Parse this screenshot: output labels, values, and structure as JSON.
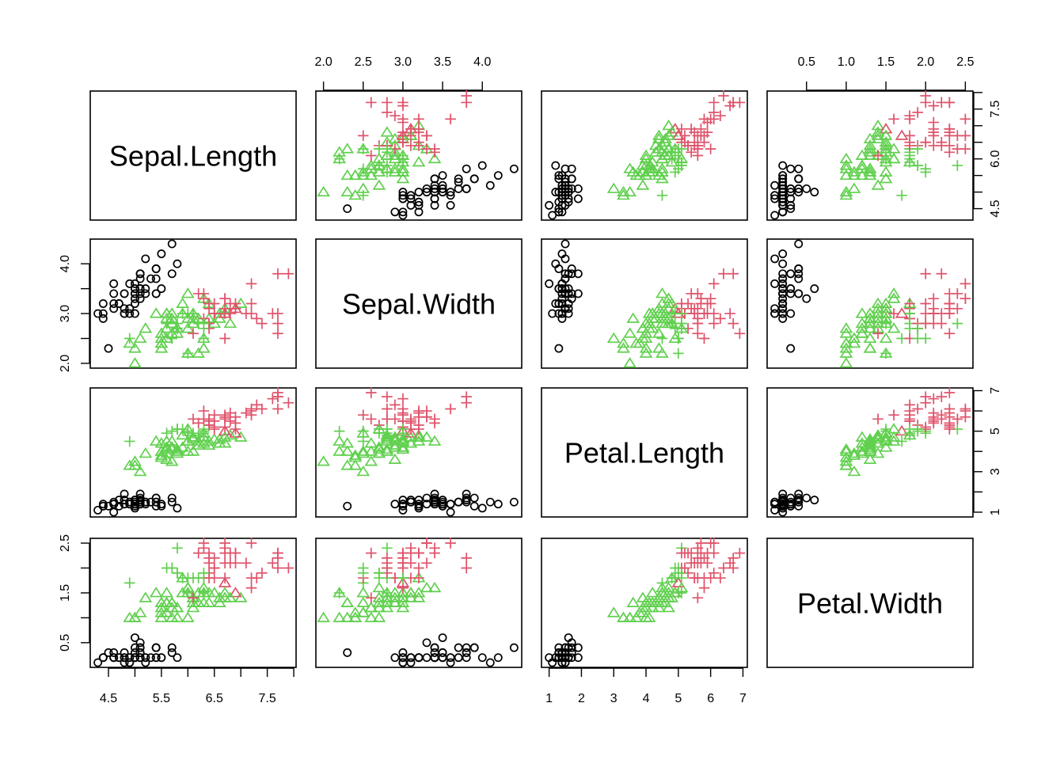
{
  "chart_data": {
    "type": "scatter",
    "subtype": "scatterplot-matrix",
    "title": "",
    "variables": [
      "Sepal.Length",
      "Sepal.Width",
      "Petal.Length",
      "Petal.Width"
    ],
    "axis_ranges": {
      "Sepal.Length": [
        4.3,
        7.9
      ],
      "Sepal.Width": [
        2.0,
        4.4
      ],
      "Petal.Length": [
        1.0,
        6.9
      ],
      "Petal.Width": [
        0.1,
        2.5
      ]
    },
    "ticks": {
      "Sepal.Length": [
        "4.5",
        "5.0",
        "5.5",
        "6.0",
        "6.5",
        "7.0",
        "7.5",
        "8.0"
      ],
      "Sepal.Width": [
        "2.0",
        "2.5",
        "3.0",
        "3.5",
        "4.0"
      ],
      "Petal.Length": [
        "1",
        "2",
        "3",
        "4",
        "5",
        "6",
        "7"
      ],
      "Petal.Width": [
        "0.5",
        "1.0",
        "1.5",
        "2.0",
        "2.5"
      ]
    },
    "tick_labels_shown": {
      "Sepal.Length": [
        "4.5",
        "5.5",
        "6.5",
        "7.5"
      ],
      "Sepal.Length_right": [
        "4.5",
        "6.0",
        "7.5"
      ],
      "Sepal.Width": [
        "2.0",
        "2.5",
        "3.0",
        "3.5",
        "4.0"
      ],
      "Sepal.Width_left": [
        "2.0",
        "3.0",
        "4.0"
      ],
      "Petal.Length": [
        "1",
        "2",
        "3",
        "4",
        "5",
        "6",
        "7"
      ],
      "Petal.Length_right": [
        "1",
        "3",
        "5",
        "7"
      ],
      "Petal.Width": [
        "0.5",
        "1.0",
        "1.5",
        "2.0",
        "2.5"
      ],
      "Petal.Width_left": [
        "0.5",
        "1.5",
        "2.5"
      ]
    },
    "encoding": {
      "shape": "species (circle = setosa, triangle = versicolor, plus = virginica)",
      "color": "cluster assignment"
    },
    "cluster_colors": [
      "#000000",
      "#61D04F",
      "#DF536B"
    ],
    "shapes": [
      "circle",
      "triangle",
      "plus"
    ],
    "grid": false,
    "legend": "none",
    "points": [
      [
        5.1,
        3.5,
        1.4,
        0.2,
        0,
        0
      ],
      [
        4.9,
        3.0,
        1.4,
        0.2,
        0,
        0
      ],
      [
        4.7,
        3.2,
        1.3,
        0.2,
        0,
        0
      ],
      [
        4.6,
        3.1,
        1.5,
        0.2,
        0,
        0
      ],
      [
        5.0,
        3.6,
        1.4,
        0.2,
        0,
        0
      ],
      [
        5.4,
        3.9,
        1.7,
        0.4,
        0,
        0
      ],
      [
        4.6,
        3.4,
        1.4,
        0.3,
        0,
        0
      ],
      [
        5.0,
        3.4,
        1.5,
        0.2,
        0,
        0
      ],
      [
        4.4,
        2.9,
        1.4,
        0.2,
        0,
        0
      ],
      [
        4.9,
        3.1,
        1.5,
        0.1,
        0,
        0
      ],
      [
        5.4,
        3.7,
        1.5,
        0.2,
        0,
        0
      ],
      [
        4.8,
        3.4,
        1.6,
        0.2,
        0,
        0
      ],
      [
        4.8,
        3.0,
        1.4,
        0.1,
        0,
        0
      ],
      [
        4.3,
        3.0,
        1.1,
        0.1,
        0,
        0
      ],
      [
        5.8,
        4.0,
        1.2,
        0.2,
        0,
        0
      ],
      [
        5.7,
        4.4,
        1.5,
        0.4,
        0,
        0
      ],
      [
        5.4,
        3.9,
        1.3,
        0.4,
        0,
        0
      ],
      [
        5.1,
        3.5,
        1.4,
        0.3,
        0,
        0
      ],
      [
        5.7,
        3.8,
        1.7,
        0.3,
        0,
        0
      ],
      [
        5.1,
        3.8,
        1.5,
        0.3,
        0,
        0
      ],
      [
        5.4,
        3.4,
        1.7,
        0.2,
        0,
        0
      ],
      [
        5.1,
        3.7,
        1.5,
        0.4,
        0,
        0
      ],
      [
        4.6,
        3.6,
        1.0,
        0.2,
        0,
        0
      ],
      [
        5.1,
        3.3,
        1.7,
        0.5,
        0,
        0
      ],
      [
        4.8,
        3.4,
        1.9,
        0.2,
        0,
        0
      ],
      [
        5.0,
        3.0,
        1.6,
        0.2,
        0,
        0
      ],
      [
        5.0,
        3.4,
        1.6,
        0.4,
        0,
        0
      ],
      [
        5.2,
        3.5,
        1.5,
        0.2,
        0,
        0
      ],
      [
        5.2,
        3.4,
        1.4,
        0.2,
        0,
        0
      ],
      [
        4.7,
        3.2,
        1.6,
        0.2,
        0,
        0
      ],
      [
        4.8,
        3.1,
        1.6,
        0.2,
        0,
        0
      ],
      [
        5.4,
        3.4,
        1.5,
        0.4,
        0,
        0
      ],
      [
        5.2,
        4.1,
        1.5,
        0.1,
        0,
        0
      ],
      [
        5.5,
        4.2,
        1.4,
        0.2,
        0,
        0
      ],
      [
        4.9,
        3.1,
        1.5,
        0.2,
        0,
        0
      ],
      [
        5.0,
        3.2,
        1.2,
        0.2,
        0,
        0
      ],
      [
        5.5,
        3.5,
        1.3,
        0.2,
        0,
        0
      ],
      [
        4.9,
        3.6,
        1.4,
        0.1,
        0,
        0
      ],
      [
        4.4,
        3.0,
        1.3,
        0.2,
        0,
        0
      ],
      [
        5.1,
        3.4,
        1.5,
        0.2,
        0,
        0
      ],
      [
        5.0,
        3.5,
        1.3,
        0.3,
        0,
        0
      ],
      [
        4.5,
        2.3,
        1.3,
        0.3,
        0,
        0
      ],
      [
        4.4,
        3.2,
        1.3,
        0.2,
        0,
        0
      ],
      [
        5.0,
        3.5,
        1.6,
        0.6,
        0,
        0
      ],
      [
        5.1,
        3.8,
        1.9,
        0.4,
        0,
        0
      ],
      [
        4.8,
        3.0,
        1.4,
        0.3,
        0,
        0
      ],
      [
        5.1,
        3.8,
        1.6,
        0.2,
        0,
        0
      ],
      [
        4.6,
        3.2,
        1.4,
        0.2,
        0,
        0
      ],
      [
        5.3,
        3.7,
        1.5,
        0.2,
        0,
        0
      ],
      [
        5.0,
        3.3,
        1.4,
        0.2,
        0,
        0
      ],
      [
        7.0,
        3.2,
        4.7,
        1.4,
        1,
        1
      ],
      [
        6.4,
        3.2,
        4.5,
        1.5,
        1,
        1
      ],
      [
        6.9,
        3.1,
        4.9,
        1.5,
        1,
        2
      ],
      [
        5.5,
        2.3,
        4.0,
        1.3,
        1,
        1
      ],
      [
        6.5,
        2.8,
        4.6,
        1.5,
        1,
        1
      ],
      [
        5.7,
        2.8,
        4.5,
        1.3,
        1,
        1
      ],
      [
        6.3,
        3.3,
        4.7,
        1.6,
        1,
        1
      ],
      [
        4.9,
        2.4,
        3.3,
        1.0,
        1,
        1
      ],
      [
        6.6,
        2.9,
        4.6,
        1.3,
        1,
        1
      ],
      [
        5.2,
        2.7,
        3.9,
        1.4,
        1,
        1
      ],
      [
        5.0,
        2.0,
        3.5,
        1.0,
        1,
        1
      ],
      [
        5.9,
        3.0,
        4.2,
        1.5,
        1,
        1
      ],
      [
        6.0,
        2.2,
        4.0,
        1.0,
        1,
        1
      ],
      [
        6.1,
        2.9,
        4.7,
        1.4,
        1,
        1
      ],
      [
        5.6,
        2.9,
        3.6,
        1.3,
        1,
        1
      ],
      [
        6.7,
        3.1,
        4.4,
        1.4,
        1,
        1
      ],
      [
        5.6,
        3.0,
        4.5,
        1.5,
        1,
        1
      ],
      [
        5.8,
        2.7,
        4.1,
        1.0,
        1,
        1
      ],
      [
        6.2,
        2.2,
        4.5,
        1.5,
        1,
        1
      ],
      [
        5.6,
        2.5,
        3.9,
        1.1,
        1,
        1
      ],
      [
        5.9,
        3.2,
        4.8,
        1.8,
        1,
        1
      ],
      [
        6.1,
        2.8,
        4.0,
        1.3,
        1,
        1
      ],
      [
        6.3,
        2.5,
        4.9,
        1.5,
        1,
        1
      ],
      [
        6.1,
        2.8,
        4.7,
        1.2,
        1,
        1
      ],
      [
        6.4,
        2.9,
        4.3,
        1.3,
        1,
        1
      ],
      [
        6.6,
        3.0,
        4.4,
        1.4,
        1,
        1
      ],
      [
        6.8,
        2.8,
        4.8,
        1.4,
        1,
        1
      ],
      [
        6.7,
        3.0,
        5.0,
        1.7,
        1,
        2
      ],
      [
        6.0,
        2.9,
        4.5,
        1.5,
        1,
        1
      ],
      [
        5.7,
        2.6,
        3.5,
        1.0,
        1,
        1
      ],
      [
        5.5,
        2.4,
        3.8,
        1.1,
        1,
        1
      ],
      [
        5.5,
        2.4,
        3.7,
        1.0,
        1,
        1
      ],
      [
        5.8,
        2.7,
        3.9,
        1.2,
        1,
        1
      ],
      [
        6.0,
        2.7,
        5.1,
        1.6,
        1,
        1
      ],
      [
        5.4,
        3.0,
        4.5,
        1.5,
        1,
        1
      ],
      [
        6.0,
        3.4,
        4.5,
        1.6,
        1,
        1
      ],
      [
        6.7,
        3.1,
        4.7,
        1.5,
        1,
        1
      ],
      [
        6.3,
        2.3,
        4.4,
        1.3,
        1,
        1
      ],
      [
        5.6,
        3.0,
        4.1,
        1.3,
        1,
        1
      ],
      [
        5.5,
        2.5,
        4.0,
        1.3,
        1,
        1
      ],
      [
        5.5,
        2.6,
        4.4,
        1.2,
        1,
        1
      ],
      [
        6.1,
        3.0,
        4.6,
        1.4,
        1,
        1
      ],
      [
        5.8,
        2.6,
        4.0,
        1.2,
        1,
        1
      ],
      [
        5.0,
        2.3,
        3.3,
        1.0,
        1,
        1
      ],
      [
        5.6,
        2.7,
        4.2,
        1.3,
        1,
        1
      ],
      [
        5.7,
        3.0,
        4.2,
        1.2,
        1,
        1
      ],
      [
        5.7,
        2.9,
        4.2,
        1.3,
        1,
        1
      ],
      [
        6.2,
        2.9,
        4.3,
        1.3,
        1,
        1
      ],
      [
        5.1,
        2.5,
        3.0,
        1.1,
        1,
        1
      ],
      [
        5.7,
        2.8,
        4.1,
        1.3,
        1,
        1
      ],
      [
        6.3,
        3.3,
        6.0,
        2.5,
        2,
        2
      ],
      [
        5.8,
        2.7,
        5.1,
        1.9,
        2,
        1
      ],
      [
        7.1,
        3.0,
        5.9,
        2.1,
        2,
        2
      ],
      [
        6.3,
        2.9,
        5.6,
        1.8,
        2,
        2
      ],
      [
        6.5,
        3.0,
        5.8,
        2.2,
        2,
        2
      ],
      [
        7.6,
        3.0,
        6.6,
        2.1,
        2,
        2
      ],
      [
        4.9,
        2.5,
        4.5,
        1.7,
        2,
        1
      ],
      [
        7.3,
        2.9,
        6.3,
        1.8,
        2,
        2
      ],
      [
        6.7,
        2.5,
        5.8,
        1.8,
        2,
        2
      ],
      [
        7.2,
        3.6,
        6.1,
        2.5,
        2,
        2
      ],
      [
        6.5,
        3.2,
        5.1,
        2.0,
        2,
        2
      ],
      [
        6.4,
        2.7,
        5.3,
        1.9,
        2,
        2
      ],
      [
        6.8,
        3.0,
        5.5,
        2.1,
        2,
        2
      ],
      [
        5.7,
        2.5,
        5.0,
        2.0,
        2,
        1
      ],
      [
        5.8,
        2.8,
        5.1,
        2.4,
        2,
        1
      ],
      [
        6.4,
        3.2,
        5.3,
        2.3,
        2,
        2
      ],
      [
        6.5,
        3.0,
        5.5,
        1.8,
        2,
        2
      ],
      [
        7.7,
        3.8,
        6.7,
        2.2,
        2,
        2
      ],
      [
        7.7,
        2.6,
        6.9,
        2.3,
        2,
        2
      ],
      [
        6.0,
        2.2,
        5.0,
        1.5,
        2,
        1
      ],
      [
        6.9,
        3.2,
        5.7,
        2.3,
        2,
        2
      ],
      [
        5.6,
        2.8,
        4.9,
        2.0,
        2,
        1
      ],
      [
        7.7,
        2.8,
        6.7,
        2.0,
        2,
        2
      ],
      [
        6.3,
        2.7,
        4.9,
        1.8,
        2,
        1
      ],
      [
        6.7,
        3.3,
        5.7,
        2.1,
        2,
        2
      ],
      [
        7.2,
        3.2,
        6.0,
        1.8,
        2,
        2
      ],
      [
        6.2,
        2.8,
        4.8,
        1.8,
        2,
        1
      ],
      [
        6.1,
        3.0,
        4.9,
        1.8,
        2,
        1
      ],
      [
        6.4,
        2.8,
        5.6,
        2.1,
        2,
        2
      ],
      [
        7.2,
        3.0,
        5.8,
        1.6,
        2,
        2
      ],
      [
        7.4,
        2.8,
        6.1,
        1.9,
        2,
        2
      ],
      [
        7.9,
        3.8,
        6.4,
        2.0,
        2,
        2
      ],
      [
        6.4,
        2.8,
        5.6,
        2.2,
        2,
        2
      ],
      [
        6.3,
        2.8,
        5.1,
        1.5,
        2,
        1
      ],
      [
        6.1,
        2.6,
        5.6,
        1.4,
        2,
        2
      ],
      [
        7.7,
        3.0,
        6.1,
        2.3,
        2,
        2
      ],
      [
        6.3,
        3.4,
        5.6,
        2.4,
        2,
        2
      ],
      [
        6.4,
        3.1,
        5.5,
        1.8,
        2,
        2
      ],
      [
        6.0,
        3.0,
        4.8,
        1.8,
        2,
        1
      ],
      [
        6.9,
        3.1,
        5.4,
        2.1,
        2,
        2
      ],
      [
        6.7,
        3.1,
        5.6,
        2.4,
        2,
        2
      ],
      [
        6.9,
        3.1,
        5.1,
        2.3,
        2,
        2
      ],
      [
        5.8,
        2.7,
        5.1,
        1.9,
        2,
        1
      ],
      [
        6.8,
        3.2,
        5.9,
        2.3,
        2,
        2
      ],
      [
        6.7,
        3.3,
        5.7,
        2.5,
        2,
        2
      ],
      [
        6.7,
        3.0,
        5.2,
        2.3,
        2,
        2
      ],
      [
        6.3,
        2.5,
        5.0,
        1.9,
        2,
        1
      ],
      [
        6.5,
        3.0,
        5.2,
        2.0,
        2,
        2
      ],
      [
        6.2,
        3.4,
        5.4,
        2.3,
        2,
        2
      ],
      [
        5.9,
        3.0,
        5.1,
        1.8,
        2,
        1
      ]
    ],
    "point_fields": [
      "Sepal.Length",
      "Sepal.Width",
      "Petal.Length",
      "Petal.Width",
      "species_shape_index",
      "cluster_color_index"
    ]
  }
}
